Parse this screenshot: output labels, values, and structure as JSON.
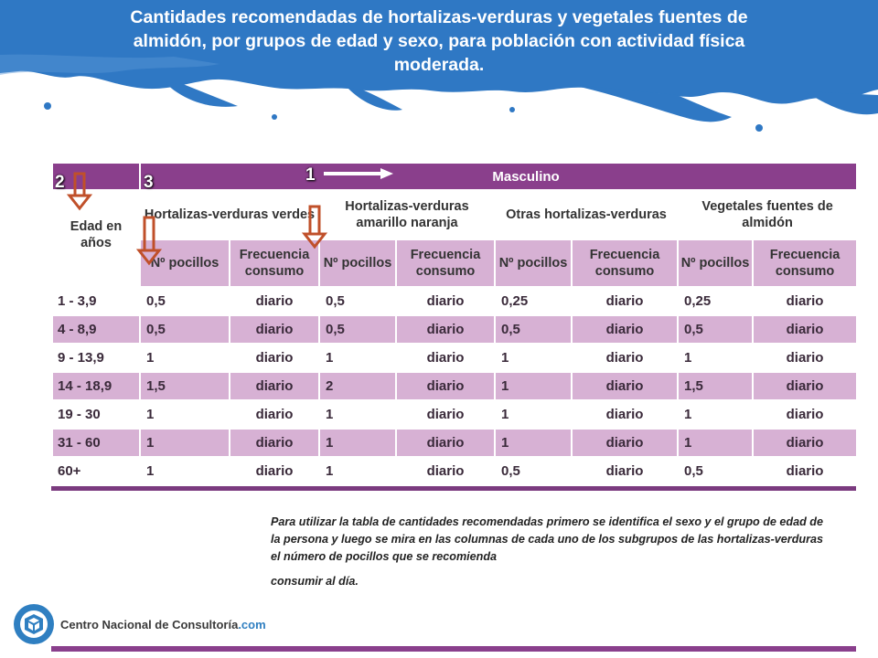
{
  "title": "Cantidades recomendadas de hortalizas-verduras y vegetales fuentes de almidón, por grupos de edad y sexo, para población con actividad física moderada.",
  "table": {
    "sex_header": "Masculino",
    "age_header": "Edad en años",
    "groups": [
      "Hortalizas-verduras verdes",
      "Hortalizas-verduras amarillo naranja",
      "Otras hortalizas-verduras",
      "Vegetales fuentes de almidón"
    ],
    "sub_headers": [
      "Nº pocillos",
      "Frecuencia consumo"
    ],
    "rows": [
      {
        "age": "1 - 3,9",
        "values": [
          "0,5",
          "diario",
          "0,5",
          "diario",
          "0,25",
          "diario",
          "0,25",
          "diario"
        ]
      },
      {
        "age": "4 - 8,9",
        "values": [
          "0,5",
          "diario",
          "0,5",
          "diario",
          "0,5",
          "diario",
          "0,5",
          "diario"
        ]
      },
      {
        "age": "9 - 13,9",
        "values": [
          "1",
          "diario",
          "1",
          "diario",
          "1",
          "diario",
          "1",
          "diario"
        ]
      },
      {
        "age": "14 - 18,9",
        "values": [
          "1,5",
          "diario",
          "2",
          "diario",
          "1",
          "diario",
          "1,5",
          "diario"
        ]
      },
      {
        "age": "19 - 30",
        "values": [
          "1",
          "diario",
          "1",
          "diario",
          "1",
          "diario",
          "1",
          "diario"
        ]
      },
      {
        "age": "31 - 60",
        "values": [
          "1",
          "diario",
          "1",
          "diario",
          "1",
          "diario",
          "1",
          "diario"
        ]
      },
      {
        "age": "60+",
        "values": [
          "1",
          "diario",
          "1",
          "diario",
          "0,5",
          "diario",
          "0,5",
          "diario"
        ]
      }
    ]
  },
  "markers": {
    "one": "1",
    "two": "2",
    "three": "3"
  },
  "note": {
    "main": "Para utilizar la tabla de cantidades recomendadas primero se identifica el sexo y el grupo de edad de la persona y luego se mira en las columnas de cada uno de los subgrupos de las hortalizas-verduras el número de pocillos que se recomienda",
    "last": "consumir al día."
  },
  "logo": {
    "name": "Centro Nacional de Consultoría",
    "domain": ".com"
  },
  "colors": {
    "banner": "#2f78c4",
    "table_purple": "#8a3f8c",
    "row_band": "#d7b1d4",
    "arrow": "#c0502a"
  }
}
